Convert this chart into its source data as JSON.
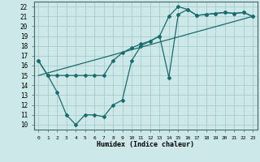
{
  "xlabel": "Humidex (Indice chaleur)",
  "bg_color": "#cce8e8",
  "grid_color": "#aacccc",
  "line_color": "#1a6b6b",
  "xlim": [
    -0.5,
    23.5
  ],
  "ylim": [
    9.5,
    22.5
  ],
  "xticks": [
    0,
    1,
    2,
    3,
    4,
    5,
    6,
    7,
    8,
    9,
    10,
    11,
    12,
    13,
    14,
    15,
    16,
    17,
    18,
    19,
    20,
    21,
    22,
    23
  ],
  "yticks": [
    10,
    11,
    12,
    13,
    14,
    15,
    16,
    17,
    18,
    19,
    20,
    21,
    22
  ],
  "line1_x": [
    0,
    1,
    2,
    3,
    4,
    5,
    6,
    7,
    8,
    9,
    10,
    11,
    12,
    13,
    14,
    15,
    16,
    17,
    18,
    19,
    20,
    21,
    22,
    23
  ],
  "line1_y": [
    16.5,
    15.0,
    15.0,
    15.0,
    15.0,
    15.0,
    15.0,
    15.0,
    16.5,
    17.3,
    17.8,
    18.2,
    18.5,
    19.0,
    14.8,
    21.2,
    21.7,
    21.1,
    21.2,
    21.3,
    21.4,
    21.3,
    21.4,
    21.0
  ],
  "line2_x": [
    0,
    1,
    2,
    3,
    4,
    5,
    6,
    7,
    8,
    9,
    10,
    11,
    12,
    13,
    14,
    15,
    16,
    17,
    18,
    19,
    20,
    21,
    22,
    23
  ],
  "line2_y": [
    16.5,
    15.0,
    13.3,
    11.0,
    10.0,
    11.0,
    11.0,
    10.8,
    12.0,
    12.5,
    16.5,
    18.0,
    18.5,
    19.0,
    21.0,
    22.0,
    21.7,
    21.1,
    21.2,
    21.3,
    21.4,
    21.3,
    21.4,
    21.0
  ],
  "line3_x": [
    0,
    23
  ],
  "line3_y": [
    15.0,
    21.0
  ]
}
